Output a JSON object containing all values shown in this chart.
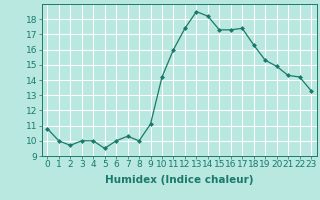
{
  "x": [
    0,
    1,
    2,
    3,
    4,
    5,
    6,
    7,
    8,
    9,
    10,
    11,
    12,
    13,
    14,
    15,
    16,
    17,
    18,
    19,
    20,
    21,
    22,
    23
  ],
  "y": [
    10.8,
    10.0,
    9.7,
    10.0,
    10.0,
    9.5,
    10.0,
    10.3,
    10.0,
    11.1,
    14.2,
    16.0,
    17.4,
    18.5,
    18.2,
    17.3,
    17.3,
    17.4,
    16.3,
    15.3,
    14.9,
    14.3,
    14.2,
    13.3
  ],
  "line_color": "#1a7a6a",
  "marker": "D",
  "marker_size": 2.0,
  "bg_color": "#b8e8e0",
  "grid_color": "#ffffff",
  "xlabel": "Humidex (Indice chaleur)",
  "ylabel": "",
  "title": "",
  "xlim": [
    -0.5,
    23.5
  ],
  "ylim": [
    9,
    19
  ],
  "yticks": [
    9,
    10,
    11,
    12,
    13,
    14,
    15,
    16,
    17,
    18
  ],
  "xticks": [
    0,
    1,
    2,
    3,
    4,
    5,
    6,
    7,
    8,
    9,
    10,
    11,
    12,
    13,
    14,
    15,
    16,
    17,
    18,
    19,
    20,
    21,
    22,
    23
  ],
  "xlabel_fontsize": 7.5,
  "tick_fontsize": 6.5
}
